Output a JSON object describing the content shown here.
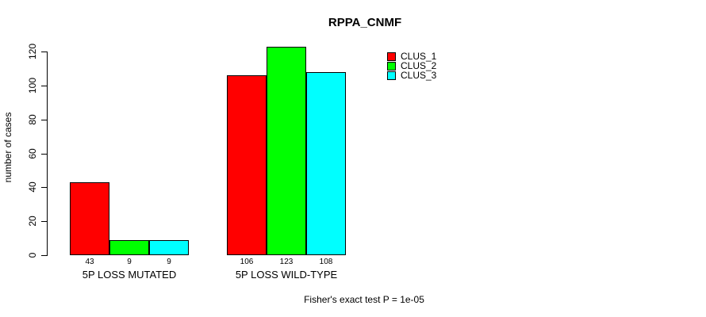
{
  "chart_data": {
    "type": "bar",
    "title": "RPPA_CNMF",
    "xlabel": "",
    "ylabel": "number of cases",
    "categories": [
      "5P LOSS MUTATED",
      "5P LOSS WILD-TYPE"
    ],
    "series": [
      {
        "name": "CLUS_1",
        "color": "#ff0000",
        "values": [
          43,
          106
        ]
      },
      {
        "name": "CLUS_2",
        "color": "#00ff00",
        "values": [
          9,
          123
        ]
      },
      {
        "name": "CLUS_3",
        "color": "#00ffff",
        "values": [
          9,
          108
        ]
      }
    ],
    "ylim": [
      0,
      120
    ],
    "yticks": [
      0,
      20,
      40,
      60,
      80,
      100,
      120
    ],
    "bar_value_labels": true,
    "grid": false,
    "legend_position": "top-right",
    "annotation": "Fisher's exact test P = 1e-05",
    "axis_color": "#000000",
    "bar_border_color": "#000000",
    "background_color": "#ffffff"
  }
}
